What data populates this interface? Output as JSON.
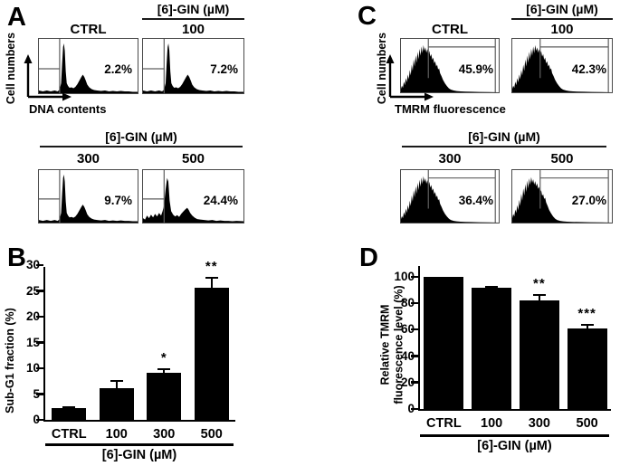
{
  "figure": {
    "background": "#ffffff",
    "ink": "#000000",
    "gate_line_color": "#5f5f5f"
  },
  "panels": {
    "a": {
      "letter": "A",
      "y_axis_label": "Cell numbers",
      "x_axis_label": "DNA contents",
      "group_label_row1": "[6]-GIN (µM)",
      "group_label_row2": "[6]-GIN (µM)",
      "plots": [
        {
          "condition": "CTRL",
          "percent": "2.2%"
        },
        {
          "condition": "100",
          "percent": "7.2%"
        },
        {
          "condition": "300",
          "percent": "9.7%"
        },
        {
          "condition": "500",
          "percent": "24.4%"
        }
      ]
    },
    "b": {
      "letter": "B"
    },
    "c": {
      "letter": "C",
      "y_axis_label": "Cell numbers",
      "x_axis_label": "TMRM fluorescence",
      "group_label_row1": "[6]-GIN (µM)",
      "group_label_row2": "[6]-GIN (µM)",
      "plots": [
        {
          "condition": "CTRL",
          "percent": "45.9%"
        },
        {
          "condition": "100",
          "percent": "42.3%"
        },
        {
          "condition": "300",
          "percent": "36.4%"
        },
        {
          "condition": "500",
          "percent": "27.0%"
        }
      ]
    },
    "d": {
      "letter": "D"
    }
  },
  "chart_data": [
    {
      "id": "A",
      "type": "area",
      "xlabel": "DNA contents",
      "ylabel": "Cell numbers",
      "group_label": "[6]-GIN (µM)",
      "categories": [
        "CTRL",
        "100",
        "300",
        "500"
      ],
      "values": [
        2.2,
        7.2,
        9.7,
        24.4
      ],
      "value_unit": "% gated (sub-G1 region)"
    },
    {
      "id": "C",
      "type": "area",
      "xlabel": "TMRM fluorescence",
      "ylabel": "Cell numbers",
      "group_label": "[6]-GIN (µM)",
      "categories": [
        "CTRL",
        "100",
        "300",
        "500"
      ],
      "values": [
        45.9,
        42.3,
        36.4,
        27.0
      ],
      "value_unit": "% gated"
    },
    {
      "id": "B",
      "type": "bar",
      "ylabel": "Sub-G1 fraction (%)",
      "xlabel": "[6]-GIN (µM)",
      "categories": [
        "CTRL",
        "100",
        "300",
        "500"
      ],
      "values": [
        2.3,
        6.1,
        9.2,
        25.6
      ],
      "errors": [
        0.3,
        1.7,
        0.8,
        2.1
      ],
      "significance": [
        "",
        "",
        "*",
        "**"
      ],
      "ylim": [
        0,
        30
      ],
      "yticks": [
        0,
        5,
        10,
        15,
        20,
        25,
        30
      ],
      "bar_color": "#000000",
      "grid": false,
      "legend": false
    },
    {
      "id": "D",
      "type": "bar",
      "ylabel": "Relative TMRM\nfluorescence level (%)",
      "xlabel": "[6]-GIN (µM)",
      "categories": [
        "CTRL",
        "100",
        "300",
        "500"
      ],
      "values": [
        100,
        92,
        82,
        61
      ],
      "errors": [
        0,
        1,
        5,
        3.5
      ],
      "significance": [
        "",
        "",
        "**",
        "***"
      ],
      "ylim": [
        0,
        100
      ],
      "yticks": [
        0,
        20,
        40,
        60,
        80,
        100
      ],
      "bar_color": "#000000",
      "grid": false,
      "legend": false
    }
  ]
}
